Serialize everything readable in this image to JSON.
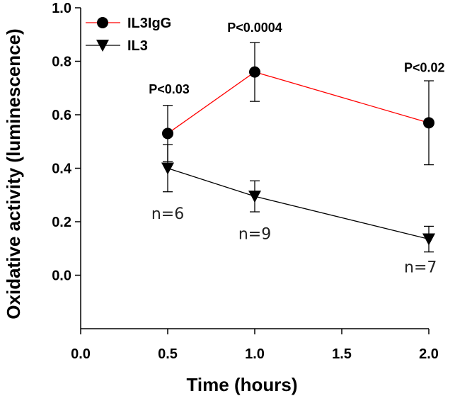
{
  "chart_data": {
    "type": "line",
    "xlabel": "Time (hours)",
    "ylabel": "Oxidative activity (luminescence)",
    "xlim": [
      0.0,
      2.0
    ],
    "ylim": [
      -0.2,
      1.0
    ],
    "x_ticks": [
      "0.0",
      "0.5",
      "1.0",
      "1.5",
      "2.0"
    ],
    "y_ticks": [
      "0.0",
      "0.2",
      "0.4",
      "0.6",
      "0.8",
      "1.0"
    ],
    "legend_position": "top-left",
    "series": [
      {
        "name": "IL3IgG",
        "color": "#ff0000",
        "marker": "circle",
        "x": [
          0.5,
          1.0,
          2.0
        ],
        "y": [
          0.53,
          0.76,
          0.57
        ],
        "err": [
          0.105,
          0.11,
          0.157
        ]
      },
      {
        "name": "IL3",
        "color": "#000000",
        "marker": "triangle-down",
        "x": [
          0.5,
          1.0,
          2.0
        ],
        "y": [
          0.4,
          0.295,
          0.135
        ],
        "err": [
          0.088,
          0.058,
          0.048
        ]
      }
    ],
    "annotations": [
      {
        "text": "P<0.03",
        "x": 0.5,
        "y": 0.68
      },
      {
        "text": "P<0.0004",
        "x": 1.0,
        "y": 0.91
      },
      {
        "text": "P<0.02",
        "x": 2.0,
        "y": 0.76
      },
      {
        "text": "n=6",
        "x": 0.5,
        "y": 0.21
      },
      {
        "text": "n=9",
        "x": 1.0,
        "y": 0.135
      },
      {
        "text": "n=7",
        "x": 2.0,
        "y": 0.01
      }
    ]
  }
}
